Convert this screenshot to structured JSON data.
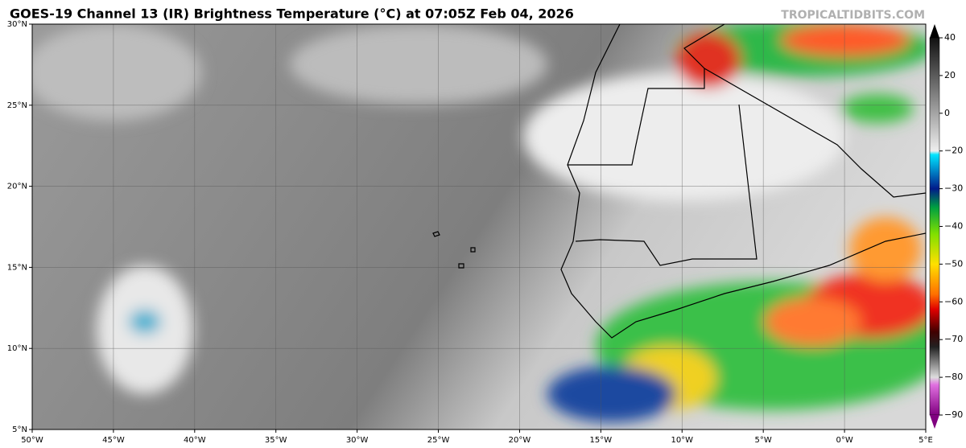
{
  "header": {
    "title": "GOES-19 Channel 13 (IR) Brightness Temperature (°C) at 07:05Z Feb 04, 2026",
    "credit": "TROPICALTIDBITS.COM"
  },
  "map": {
    "lat_labels": [
      "30°N",
      "25°N",
      "20°N",
      "15°N",
      "10°N",
      "5°N"
    ],
    "lon_labels": [
      "50°W",
      "45°W",
      "40°W",
      "35°W",
      "30°W",
      "25°W",
      "20°W",
      "15°W",
      "10°W",
      "5°W",
      "0°W",
      "5°E"
    ]
  },
  "colorbar": {
    "ticks": [
      "40",
      "20",
      "0",
      "−20",
      "−30",
      "−40",
      "−50",
      "−60",
      "−70",
      "−80",
      "−90"
    ]
  }
}
